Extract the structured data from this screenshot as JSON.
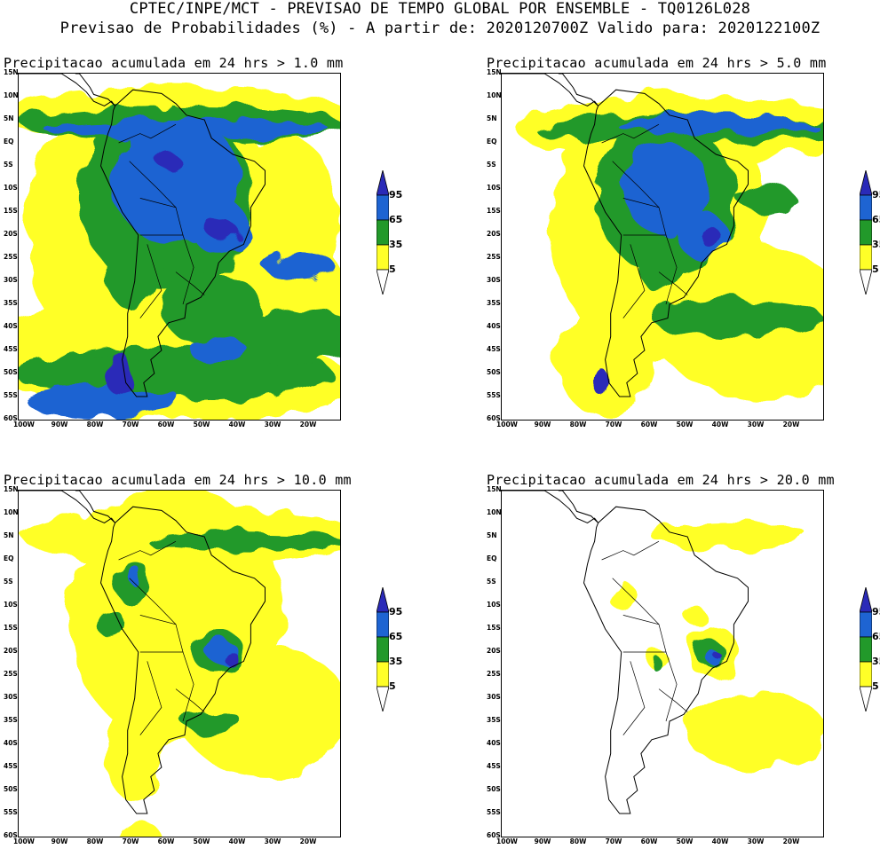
{
  "header": {
    "line1": "CPTEC/INPE/MCT - PREVISAO DE TEMPO GLOBAL POR ENSEMBLE - TQ0126L028",
    "line2": "Previsao de Probabilidades (%) -  A partir de: 2020120700Z  Valido para: 2020122100Z"
  },
  "lat_labels": [
    "15N",
    "10N",
    "5N",
    "EQ",
    "5S",
    "10S",
    "15S",
    "20S",
    "25S",
    "30S",
    "35S",
    "40S",
    "45S",
    "50S",
    "55S",
    "60S"
  ],
  "lon_labels": [
    "100W",
    "90W",
    "80W",
    "70W",
    "60W",
    "50W",
    "40W",
    "30W",
    "20W"
  ],
  "colorbar": {
    "levels": [
      "95",
      "65",
      "35",
      "5"
    ],
    "colors": {
      "above95": "#2a2ab8",
      "p65_95": "#1e64d2",
      "p35_65": "#22992a",
      "p5_35": "#ffff28",
      "below5": "#ffffff"
    }
  },
  "panels": [
    {
      "title": "Precipitacao acumulada em 24 hrs > 1.0 mm",
      "level": 4
    },
    {
      "title": "Precipitacao acumulada em 24 hrs > 5.0 mm",
      "level": 3
    },
    {
      "title": "Precipitacao acumulada em 24 hrs > 10.0 mm",
      "level": 2
    },
    {
      "title": "Precipitacao acumulada em 24 hrs > 20.0 mm",
      "level": 1
    }
  ]
}
